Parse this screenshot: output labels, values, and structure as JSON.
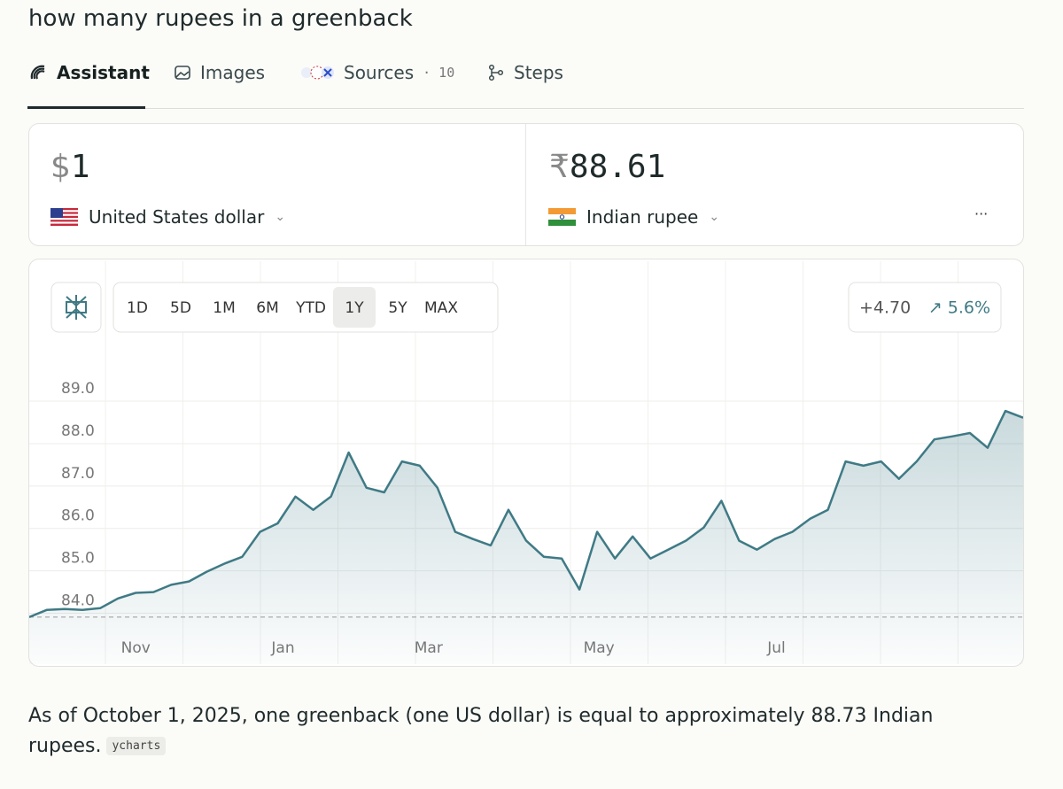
{
  "query": "how many rupees in a greenback",
  "tabs": [
    {
      "label": "Assistant"
    },
    {
      "label": "Images"
    },
    {
      "label": "Sources",
      "count": "· 10"
    },
    {
      "label": "Steps"
    }
  ],
  "active_tab": 0,
  "converter": {
    "from": {
      "symbol": "$",
      "amount": "1",
      "currency": "United States dollar"
    },
    "to": {
      "symbol": "₹",
      "amount": "88.61",
      "currency": "Indian rupee"
    },
    "more": "···"
  },
  "ranges": [
    "1D",
    "5D",
    "1M",
    "6M",
    "YTD",
    "1Y",
    "5Y",
    "MAX"
  ],
  "active_range": 5,
  "change": "+4.70",
  "change_percent": "↗ 5.6%",
  "chart_data": {
    "type": "line",
    "color": "#3f7a85",
    "values": [
      83.91,
      84.08,
      84.1,
      84.08,
      84.12,
      84.35,
      84.48,
      84.5,
      84.67,
      84.75,
      84.98,
      85.17,
      85.33,
      85.92,
      86.12,
      86.75,
      86.44,
      86.75,
      87.79,
      86.96,
      86.85,
      87.58,
      87.48,
      86.96,
      85.92,
      85.75,
      85.6,
      86.44,
      85.71,
      85.33,
      85.29,
      84.56,
      85.92,
      85.29,
      85.81,
      85.29,
      85.5,
      85.71,
      86.02,
      86.65,
      85.71,
      85.5,
      85.75,
      85.92,
      86.23,
      86.44,
      87.58,
      87.48,
      87.58,
      87.17,
      87.58,
      88.1,
      88.17,
      88.25,
      87.9,
      88.77,
      88.61
    ],
    "xlim": [
      0,
      56
    ],
    "xticks": [
      {
        "value": 6,
        "label": "Nov"
      },
      {
        "value": 14.3,
        "label": "Jan"
      },
      {
        "value": 22.5,
        "label": "Mar"
      },
      {
        "value": 32.1,
        "label": "May"
      },
      {
        "value": 42.1,
        "label": "Jul"
      }
    ],
    "ylim": [
      82.8,
      92.3
    ],
    "yticks": [
      {
        "value": 84,
        "label": "84.0"
      },
      {
        "value": 85,
        "label": "85.0"
      },
      {
        "value": 86,
        "label": "86.0"
      },
      {
        "value": 87,
        "label": "87.0"
      },
      {
        "value": 88,
        "label": "88.0"
      },
      {
        "value": 89,
        "label": "89.0"
      }
    ],
    "grid": true
  },
  "answer": {
    "text": "As of October 1, 2025, one greenback (one US dollar) is equal to approximately 88.73 Indian rupees.",
    "source": "ycharts"
  }
}
